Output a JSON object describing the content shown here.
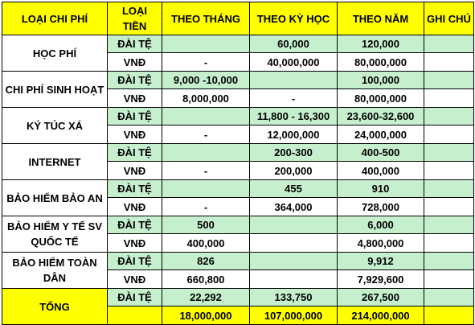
{
  "headers": [
    "LOẠI CHI PHÍ",
    "LOẠI TIỀN",
    "THEO THÁNG",
    "THEO KỲ HỌC",
    "THEO NĂM",
    "GHI CHÚ"
  ],
  "rows": [
    {
      "category": "HỌC PHÍ",
      "dt": {
        "currency": "ĐÀI TỆ",
        "month": "",
        "semester": "60,000",
        "year": "120,000",
        "note": ""
      },
      "vnd": {
        "currency": "VNĐ",
        "month": "-",
        "semester": "40,000,000",
        "year": "80,000,000",
        "note": ""
      }
    },
    {
      "category": "CHI PHÍ SINH HOẠT",
      "dt": {
        "currency": "ĐÀI TỆ",
        "month": "9,000 -10,000",
        "semester": "",
        "year": "100,000",
        "note": ""
      },
      "vnd": {
        "currency": "VNĐ",
        "month": "8,000,000",
        "semester": "-",
        "year": "80,000,000",
        "note": ""
      }
    },
    {
      "category": "KÝ TÚC XÁ",
      "dt": {
        "currency": "ĐÀI TỆ",
        "month": "",
        "semester": "11,800 - 16,300",
        "year": "23,600-32,600",
        "note": ""
      },
      "vnd": {
        "currency": "VNĐ",
        "month": "-",
        "semester": "12,000,000",
        "year": "24,000,000",
        "note": ""
      }
    },
    {
      "category": "INTERNET",
      "dt": {
        "currency": "ĐÀI TỆ",
        "month": "",
        "semester": "200-300",
        "year": "400-500",
        "note": ""
      },
      "vnd": {
        "currency": "VNĐ",
        "month": "-",
        "semester": "200,000",
        "year": "400,000",
        "note": ""
      }
    },
    {
      "category": "BẢO HIỂM BẢO AN",
      "dt": {
        "currency": "ĐÀI TỆ",
        "month": "",
        "semester": "455",
        "year": "910",
        "note": ""
      },
      "vnd": {
        "currency": "VNĐ",
        "month": "-",
        "semester": "364,000",
        "year": "728,000",
        "note": ""
      }
    },
    {
      "category": "BẢO HIỂM Y TẾ SV QUỐC TẾ",
      "dt": {
        "currency": "ĐÀI TỆ",
        "month": "500",
        "semester": "",
        "year": "6,000",
        "note": ""
      },
      "vnd": {
        "currency": "VNĐ",
        "month": "400,000",
        "semester": "",
        "year": "4,800,000",
        "note": ""
      }
    },
    {
      "category": "BẢO HIỂM TOÀN DÂN",
      "dt": {
        "currency": "ĐÀI TỆ",
        "month": "826",
        "semester": "",
        "year": "9,912",
        "note": ""
      },
      "vnd": {
        "currency": "VNĐ",
        "month": "660,800",
        "semester": "",
        "year": "7,929,600",
        "note": ""
      }
    }
  ],
  "total": {
    "category": "TỔNG",
    "dt": {
      "currency": "ĐÀI TỆ",
      "month": "22,292",
      "semester": "133,750",
      "year": "267,500",
      "note": ""
    },
    "vnd": {
      "currency": "",
      "month": "18,000,000",
      "semester": "107,000,000",
      "year": "214,000,000",
      "note": ""
    }
  },
  "colors": {
    "header_bg": "#ffff00",
    "green_cell": "#c6efce",
    "border": "#000000"
  }
}
